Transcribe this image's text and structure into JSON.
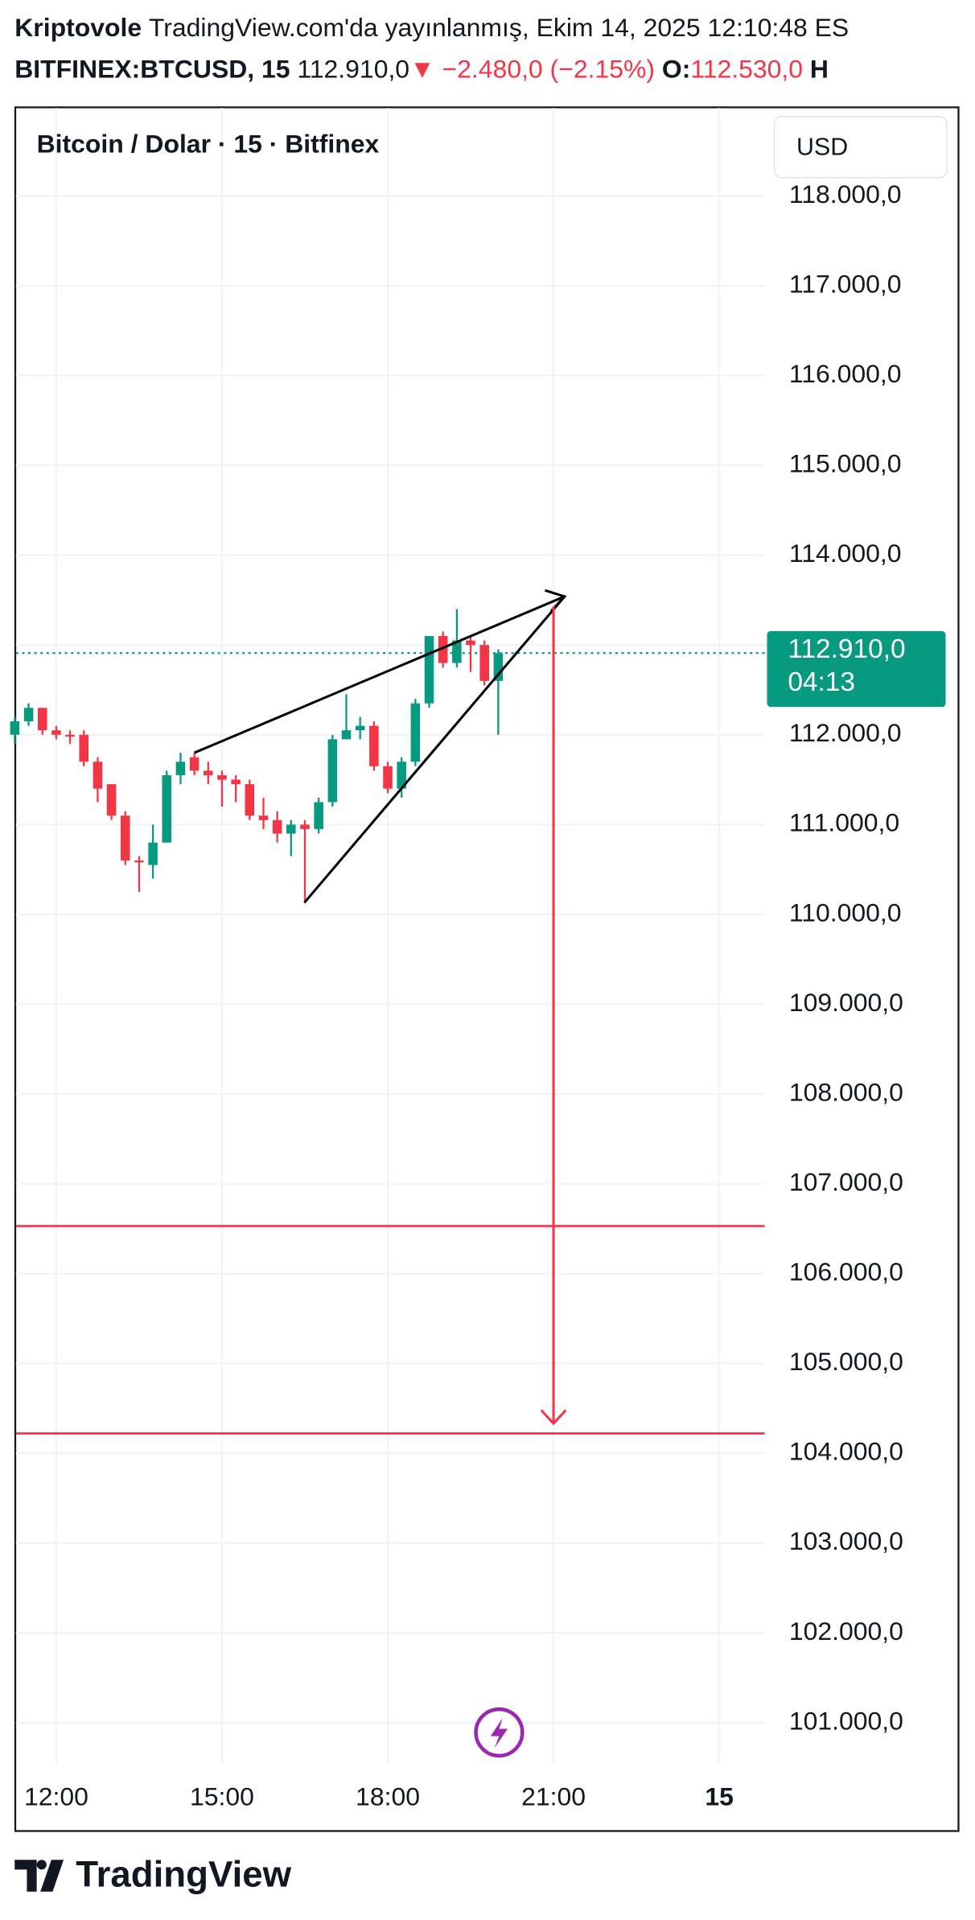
{
  "header": {
    "author": "Kriptovole",
    "published": "TradingView.com'da yayınlanmış, Ekim 14, 2025 12:10:48 ES",
    "symbol": "BITFINEX:BTCUSD, 15",
    "price": "112.910,0",
    "change": "▼ −2.480,0 (−2.15%)",
    "open_label": "O:",
    "open": "112.530,0",
    "high_label": "H"
  },
  "chart_data": {
    "type": "candlestick",
    "title": "Bitcoin / Dolar · 15 · Bitfinex",
    "currency": "USD",
    "x": [
      11.25,
      11.5,
      11.75,
      12,
      12.25,
      12.5,
      12.75,
      13,
      13.25,
      13.5,
      13.75,
      14,
      14.25,
      14.5,
      14.75,
      15,
      15.25,
      15.5,
      15.75,
      16,
      16.25,
      16.5,
      16.75,
      17,
      17.25,
      17.5,
      17.75,
      18,
      18.25,
      18.5,
      18.75,
      19,
      19.25,
      19.5,
      19.75,
      20
    ],
    "open": [
      112000,
      112150,
      112300,
      112050,
      112000,
      112000,
      111700,
      111450,
      111100,
      110600,
      110550,
      110800,
      111550,
      111750,
      111600,
      111550,
      111500,
      111450,
      111100,
      111050,
      110900,
      111000,
      110950,
      111250,
      111950,
      112050,
      112100,
      111650,
      111400,
      111700,
      112350,
      113100,
      112800,
      113050,
      113000,
      112600
    ],
    "high": [
      112200,
      112350,
      112300,
      112100,
      112050,
      112050,
      111750,
      111450,
      111150,
      110650,
      111000,
      111600,
      111800,
      111800,
      111700,
      111600,
      111550,
      111500,
      111300,
      111150,
      111050,
      111050,
      111300,
      112000,
      112450,
      112200,
      112150,
      111700,
      111750,
      112400,
      113100,
      113150,
      113400,
      113100,
      113050,
      112950
    ],
    "low": [
      111900,
      112100,
      112000,
      111950,
      111900,
      111650,
      111250,
      111050,
      110550,
      110250,
      110400,
      110800,
      111450,
      111550,
      111450,
      111200,
      111250,
      111050,
      110950,
      110800,
      110650,
      110150,
      110900,
      111200,
      111950,
      111950,
      111600,
      111350,
      111300,
      111650,
      112300,
      112750,
      112750,
      112700,
      112550,
      112000
    ],
    "close": [
      112150,
      112300,
      112050,
      112000,
      111980,
      111700,
      111400,
      111100,
      110600,
      110580,
      110800,
      111550,
      111700,
      111600,
      111550,
      111500,
      111450,
      111100,
      111050,
      110900,
      111000,
      110950,
      111250,
      111950,
      112050,
      112100,
      111650,
      111400,
      111700,
      112350,
      113100,
      112800,
      113050,
      113000,
      112600,
      112910
    ],
    "up_color": "#089981",
    "down_color": "#f23645",
    "xlim": [
      11.27,
      24.82
    ],
    "ylim": [
      100550,
      118980
    ],
    "xticks": [
      {
        "value": 12,
        "label": "12:00"
      },
      {
        "value": 15,
        "label": "15:00"
      },
      {
        "value": 18,
        "label": "18:00"
      },
      {
        "value": 21,
        "label": "21:00"
      },
      {
        "value": 24,
        "label": "15"
      }
    ],
    "yticks": [
      {
        "value": 101000,
        "label": "101.000,0"
      },
      {
        "value": 102000,
        "label": "102.000,0"
      },
      {
        "value": 103000,
        "label": "103.000,0"
      },
      {
        "value": 104000,
        "label": "104.000,0"
      },
      {
        "value": 105000,
        "label": "105.000,0"
      },
      {
        "value": 106000,
        "label": "106.000,0"
      },
      {
        "value": 107000,
        "label": "107.000,0"
      },
      {
        "value": 108000,
        "label": "108.000,0"
      },
      {
        "value": 109000,
        "label": "109.000,0"
      },
      {
        "value": 110000,
        "label": "110.000,0"
      },
      {
        "value": 111000,
        "label": "111.000,0"
      },
      {
        "value": 112000,
        "label": "112.000,0"
      },
      {
        "value": 113000,
        "label": "113.000,0"
      },
      {
        "value": 114000,
        "label": "114.000,0"
      },
      {
        "value": 115000,
        "label": "115.000,0"
      },
      {
        "value": 116000,
        "label": "116.000,0"
      },
      {
        "value": 117000,
        "label": "117.000,0"
      },
      {
        "value": 118000,
        "label": "118.000,0"
      }
    ],
    "grid": true,
    "last_price": {
      "value": 112910,
      "label": "112.910,0"
    },
    "countdown": "04:13",
    "levels": {
      "color": "#f23645",
      "values": [
        106530,
        104220
      ]
    },
    "trend_lines": {
      "color": "#000000",
      "lines": [
        {
          "x": [
            14.5,
            21.2
          ],
          "y": [
            111800,
            113540
          ]
        },
        {
          "x": [
            16.49,
            21.2
          ],
          "y": [
            110130,
            113540
          ]
        }
      ]
    },
    "target_arrow": {
      "color": "#f23645",
      "x": [
        21,
        21
      ],
      "y": [
        113430,
        104330
      ]
    }
  },
  "brand": "TradingView"
}
